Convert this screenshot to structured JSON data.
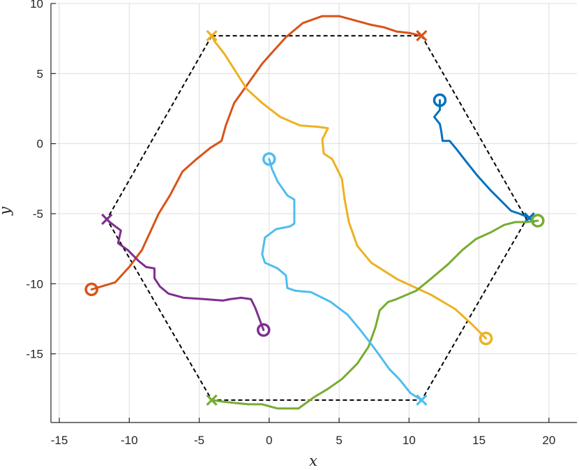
{
  "chart_data": {
    "type": "line",
    "xlabel": "x",
    "ylabel": "y",
    "xlim": [
      -15.6,
      22
    ],
    "ylim": [
      -19.9,
      10
    ],
    "xticks": [
      -15,
      -10,
      -5,
      0,
      5,
      10,
      15,
      20
    ],
    "yticks": [
      -15,
      -10,
      -5,
      0,
      5,
      10
    ],
    "xtick_labels": [
      "-15",
      "-10",
      "-5",
      "0",
      "5",
      "10",
      "15",
      "20"
    ],
    "ytick_labels": [
      "-15",
      "-10",
      "-5",
      "0",
      "5",
      "10"
    ],
    "grid": true,
    "hexagon": {
      "style": "dashed",
      "color": "#000000",
      "vertices": [
        [
          -4.1,
          7.7
        ],
        [
          10.9,
          7.7
        ],
        [
          18.4,
          -5.4
        ],
        [
          10.9,
          -18.3
        ],
        [
          -4.1,
          -18.3
        ],
        [
          -11.6,
          -5.4
        ]
      ]
    },
    "series": [
      {
        "color": "#0072BD",
        "start": [
          12.2,
          3.1
        ],
        "end": [
          18.6,
          -5.3
        ],
        "points": [
          [
            12.2,
            3.1
          ],
          [
            12.2,
            2.4
          ],
          [
            11.8,
            1.9
          ],
          [
            12.2,
            1.4
          ],
          [
            12.3,
            0.9
          ],
          [
            12.4,
            0.2
          ],
          [
            12.9,
            0.2
          ],
          [
            13.4,
            -0.4
          ],
          [
            14.1,
            -1.3
          ],
          [
            14.9,
            -2.3
          ],
          [
            15.8,
            -3.3
          ],
          [
            16.7,
            -4.2
          ],
          [
            17.3,
            -4.8
          ],
          [
            17.9,
            -5.0
          ],
          [
            18.6,
            -5.3
          ]
        ]
      },
      {
        "color": "#D95319",
        "start": [
          -12.7,
          -10.4
        ],
        "end": [
          10.9,
          7.7
        ],
        "points": [
          [
            -12.7,
            -10.4
          ],
          [
            -11.0,
            -9.9
          ],
          [
            -10.0,
            -8.8
          ],
          [
            -9.1,
            -7.6
          ],
          [
            -8.5,
            -6.3
          ],
          [
            -7.9,
            -5.0
          ],
          [
            -7.1,
            -3.7
          ],
          [
            -6.2,
            -2.0
          ],
          [
            -5.3,
            -1.2
          ],
          [
            -4.2,
            -0.3
          ],
          [
            -3.4,
            0.2
          ],
          [
            -3.1,
            1.3
          ],
          [
            -2.5,
            2.9
          ],
          [
            -1.5,
            4.3
          ],
          [
            -0.5,
            5.7
          ],
          [
            0.3,
            6.6
          ],
          [
            1.2,
            7.6
          ],
          [
            2.4,
            8.6
          ],
          [
            3.8,
            9.1
          ],
          [
            5.0,
            9.1
          ],
          [
            6.1,
            8.8
          ],
          [
            7.2,
            8.5
          ],
          [
            8.2,
            8.3
          ],
          [
            9.1,
            8.0
          ],
          [
            10.0,
            7.9
          ],
          [
            10.9,
            7.7
          ]
        ]
      },
      {
        "color": "#EDB120",
        "start": [
          15.5,
          -13.9
        ],
        "end": [
          -4.1,
          7.7
        ],
        "points": [
          [
            15.5,
            -13.9
          ],
          [
            14.5,
            -12.9
          ],
          [
            13.3,
            -11.8
          ],
          [
            11.6,
            -10.8
          ],
          [
            9.2,
            -9.7
          ],
          [
            7.3,
            -8.5
          ],
          [
            6.3,
            -7.3
          ],
          [
            5.7,
            -5.6
          ],
          [
            5.4,
            -4.0
          ],
          [
            5.2,
            -2.5
          ],
          [
            4.5,
            -1.1
          ],
          [
            3.9,
            -0.7
          ],
          [
            3.8,
            0.3
          ],
          [
            4.2,
            1.1
          ],
          [
            3.5,
            1.2
          ],
          [
            2.2,
            1.3
          ],
          [
            0.8,
            1.9
          ],
          [
            -0.5,
            2.9
          ],
          [
            -1.6,
            3.9
          ],
          [
            -2.3,
            5.0
          ],
          [
            -3.2,
            6.4
          ],
          [
            -3.9,
            7.3
          ],
          [
            -4.1,
            7.7
          ]
        ]
      },
      {
        "color": "#7E2F8E",
        "start": [
          -0.4,
          -13.3
        ],
        "end": [
          -11.6,
          -5.4
        ],
        "points": [
          [
            -0.4,
            -13.3
          ],
          [
            -0.7,
            -12.5
          ],
          [
            -1.0,
            -11.7
          ],
          [
            -1.3,
            -11.1
          ],
          [
            -2.0,
            -11.0
          ],
          [
            -2.8,
            -11.1
          ],
          [
            -3.3,
            -11.2
          ],
          [
            -4.6,
            -11.1
          ],
          [
            -6.1,
            -11.0
          ],
          [
            -7.2,
            -10.7
          ],
          [
            -7.8,
            -10.2
          ],
          [
            -8.2,
            -9.6
          ],
          [
            -8.2,
            -8.9
          ],
          [
            -8.8,
            -8.8
          ],
          [
            -9.3,
            -8.4
          ],
          [
            -10.1,
            -7.6
          ],
          [
            -10.8,
            -7.1
          ],
          [
            -10.6,
            -6.2
          ],
          [
            -11.0,
            -5.9
          ],
          [
            -11.4,
            -5.6
          ],
          [
            -11.6,
            -5.4
          ]
        ]
      },
      {
        "color": "#77AC30",
        "start": [
          19.2,
          -5.5
        ],
        "end": [
          -4.1,
          -18.3
        ],
        "points": [
          [
            19.2,
            -5.5
          ],
          [
            18.4,
            -5.6
          ],
          [
            17.6,
            -5.6
          ],
          [
            16.8,
            -5.8
          ],
          [
            15.9,
            -6.3
          ],
          [
            14.8,
            -6.8
          ],
          [
            13.8,
            -7.6
          ],
          [
            12.8,
            -8.6
          ],
          [
            11.5,
            -9.7
          ],
          [
            10.5,
            -10.5
          ],
          [
            9.1,
            -11.1
          ],
          [
            8.5,
            -11.3
          ],
          [
            7.9,
            -11.9
          ],
          [
            7.6,
            -13.1
          ],
          [
            7.1,
            -14.5
          ],
          [
            6.3,
            -15.7
          ],
          [
            5.2,
            -16.8
          ],
          [
            4.2,
            -17.5
          ],
          [
            3.2,
            -18.1
          ],
          [
            2.1,
            -18.9
          ],
          [
            0.6,
            -18.9
          ],
          [
            -0.5,
            -18.6
          ],
          [
            -1.5,
            -18.6
          ],
          [
            -2.5,
            -18.5
          ],
          [
            -3.4,
            -18.4
          ],
          [
            -4.1,
            -18.3
          ]
        ]
      },
      {
        "color": "#4DBEEE",
        "start": [
          0.0,
          -1.1
        ],
        "end": [
          10.9,
          -18.3
        ],
        "points": [
          [
            0.0,
            -1.1
          ],
          [
            0.2,
            -1.8
          ],
          [
            0.6,
            -2.7
          ],
          [
            1.3,
            -3.7
          ],
          [
            1.8,
            -4.0
          ],
          [
            1.8,
            -5.7
          ],
          [
            1.5,
            -5.9
          ],
          [
            0.5,
            -6.1
          ],
          [
            -0.3,
            -6.7
          ],
          [
            -0.5,
            -7.9
          ],
          [
            -0.3,
            -8.5
          ],
          [
            0.6,
            -8.9
          ],
          [
            1.2,
            -9.4
          ],
          [
            1.3,
            -10.3
          ],
          [
            1.9,
            -10.5
          ],
          [
            3.0,
            -10.6
          ],
          [
            4.4,
            -11.3
          ],
          [
            5.6,
            -12.2
          ],
          [
            6.6,
            -13.4
          ],
          [
            7.6,
            -14.7
          ],
          [
            8.6,
            -16.1
          ],
          [
            9.3,
            -16.8
          ],
          [
            10.1,
            -17.8
          ],
          [
            10.9,
            -18.3
          ]
        ]
      }
    ]
  }
}
